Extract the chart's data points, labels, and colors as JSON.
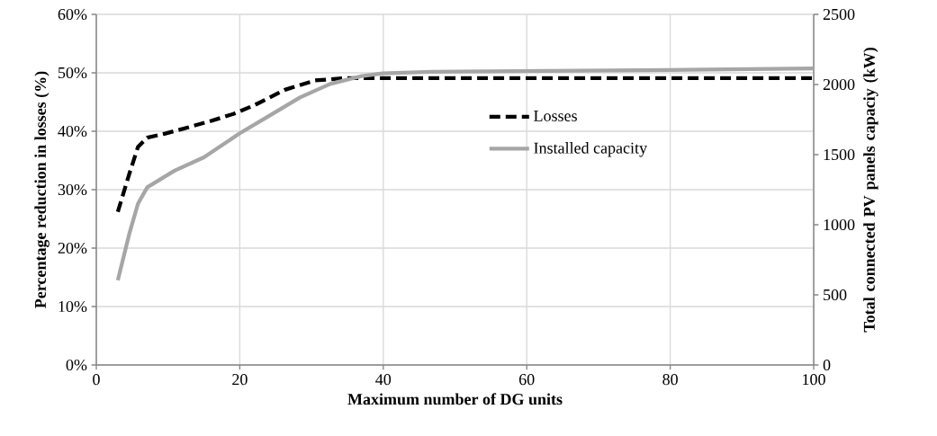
{
  "chart_data": {
    "type": "line",
    "xlabel": "Maximum number of DG units",
    "ylabel": "Percentage reduction in losses (%)",
    "y2label": "Total connected PV  panels capaciy (kW)",
    "x": [
      3.0,
      4.6,
      5.8,
      7.1,
      9.6,
      12.9,
      15.8,
      19.2,
      22.1,
      26.3,
      30.5,
      34.7,
      40,
      60,
      80,
      100
    ],
    "series": [
      {
        "name": "Losses",
        "color": "#000000",
        "line_style": "dashed",
        "axis": "y",
        "values": [
          26.2,
          32.7,
          37.3,
          38.9,
          39.6,
          40.7,
          41.7,
          43.0,
          44.5,
          47.1,
          48.7,
          49.1,
          49.1,
          49.1,
          49.1,
          49.1
        ]
      },
      {
        "name": "Installed capacity",
        "color": "#a6a6a6",
        "line_style": "solid",
        "axis": "y2",
        "x": [
          3.0,
          4.6,
          5.8,
          7.1,
          10.9,
          15.0,
          20.0,
          24.2,
          28.4,
          32.6,
          36.8,
          39.9,
          46.8,
          79.8,
          100
        ],
        "values": [
          604,
          936,
          1149,
          1267,
          1385,
          1481,
          1652,
          1780,
          1908,
          2004,
          2058,
          2079,
          2090,
          2104,
          2115
        ]
      }
    ],
    "xlim": [
      0,
      100
    ],
    "xticks": [
      0,
      20,
      40,
      60,
      80,
      100
    ],
    "ylim": [
      0,
      60
    ],
    "yticks": [
      {
        "value": 0,
        "label": "0%"
      },
      {
        "value": 10,
        "label": "10%"
      },
      {
        "value": 20,
        "label": "20%"
      },
      {
        "value": 30,
        "label": "30%"
      },
      {
        "value": 40,
        "label": "40%"
      },
      {
        "value": 50,
        "label": "50%"
      },
      {
        "value": 60,
        "label": "60%"
      }
    ],
    "y2lim": [
      0,
      2500
    ],
    "y2ticks": [
      0,
      500,
      1000,
      1500,
      2000,
      2500
    ],
    "grid": true,
    "legend": "right",
    "marker": "none"
  }
}
